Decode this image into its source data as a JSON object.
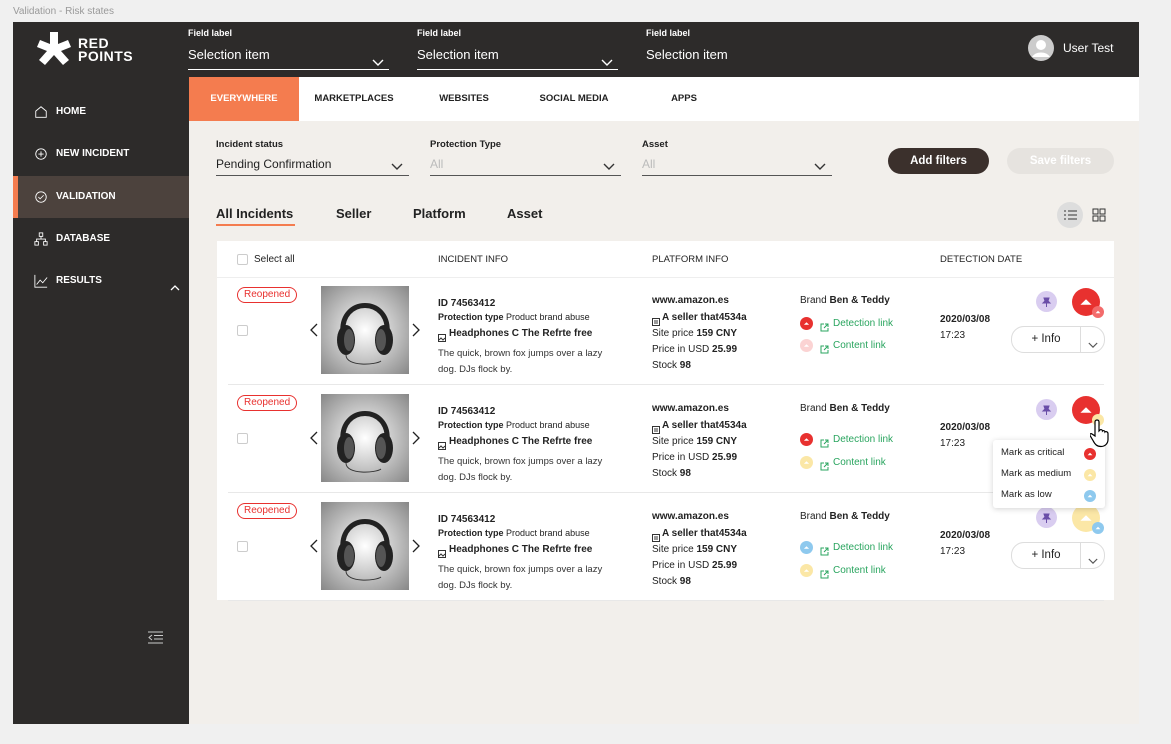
{
  "frame_label": "Validation - Risk states",
  "header": {
    "logo": [
      "RED",
      "POINTS"
    ],
    "fields": [
      {
        "label": "Field label",
        "value": "Selection item"
      },
      {
        "label": "Field label",
        "value": "Selection item"
      },
      {
        "label": "Field label",
        "value": "Selection item"
      }
    ],
    "user": "User Test"
  },
  "sidebar": {
    "items": [
      "HOME",
      "NEW INCIDENT",
      "VALIDATION",
      "DATABASE",
      "RESULTS"
    ],
    "active": 2
  },
  "channel_tabs": {
    "items": [
      "EVERYWHERE",
      "MARKETPLACES",
      "WEBSITES",
      "SOCIAL MEDIA",
      "APPS"
    ],
    "active": 0
  },
  "filters": [
    {
      "label": "Incident status",
      "value": "Pending Confirmation"
    },
    {
      "label": "Protection Type",
      "value": "All"
    },
    {
      "label": "Asset",
      "value": "All"
    }
  ],
  "buttons": {
    "add": "Add filters",
    "save": "Save filters"
  },
  "view_tabs": {
    "items": [
      "All Incidents",
      "Seller",
      "Platform",
      "Asset"
    ],
    "active": 0
  },
  "table": {
    "select_all": "Select all",
    "columns": [
      "INCIDENT INFO",
      "PLATFORM INFO",
      "DETECTION DATE"
    ],
    "rows": [
      {
        "status": "Reopened",
        "id": "ID 74563412",
        "protection_label": "Protection type",
        "protection": "Product brand abuse",
        "product": "Headphones C The Refrte free",
        "description": "The quick, brown fox jumps over a lazy dog. DJs flock by.",
        "platform": "www.amazon.es",
        "seller": "A seller that4534a",
        "site_price_label": "Site price",
        "site_price": "159 CNY",
        "usd_label": "Price in USD",
        "usd": "25.99",
        "stock_label": "Stock",
        "stock": "98",
        "brand_label": "Brand",
        "brand": "Ben & Teddy",
        "detection_link": "Detection link",
        "content_link": "Content link",
        "date": "2020/03/08",
        "time": "17:23",
        "info": "+ Info",
        "risk_color": "#e8312f",
        "risk_badge_color": "#f36b6b",
        "detection_color": "#e8312f",
        "content_color": "#fbd3d3"
      },
      {
        "status": "Reopened",
        "id": "ID 74563412",
        "protection_label": "Protection type",
        "protection": "Product brand abuse",
        "product": "Headphones C The Refrte free",
        "description": "The quick, brown fox jumps over a lazy dog. DJs flock by.",
        "platform": "www.amazon.es",
        "seller": "A seller that4534a",
        "site_price_label": "Site price",
        "site_price": "159 CNY",
        "usd_label": "Price in USD",
        "usd": "25.99",
        "stock_label": "Stock",
        "stock": "98",
        "brand_label": "Brand",
        "brand": "Ben & Teddy",
        "detection_link": "Detection link",
        "content_link": "Content link",
        "date": "2020/03/08",
        "time": "17:23",
        "risk_color": "#e8312f",
        "risk_badge_color": "#fbe7a6",
        "detection_color": "#e8312f",
        "content_color": "#fbe7a6"
      },
      {
        "status": "Reopened",
        "id": "ID 74563412",
        "protection_label": "Protection type",
        "protection": "Product brand abuse",
        "product": "Headphones C The Refrte free",
        "description": "The quick, brown fox jumps over a lazy dog. DJs flock by.",
        "platform": "www.amazon.es",
        "seller": "A seller that4534a",
        "site_price_label": "Site price",
        "site_price": "159 CNY",
        "usd_label": "Price in USD",
        "usd": "25.99",
        "stock_label": "Stock",
        "stock": "98",
        "brand_label": "Brand",
        "brand": "Ben & Teddy",
        "detection_link": "Detection link",
        "content_link": "Content link",
        "date": "2020/03/08",
        "time": "17:23",
        "info": "+ Info",
        "risk_color": "#fbe7a6",
        "risk_badge_color": "#8ec9ee",
        "detection_color": "#8ec9ee",
        "content_color": "#fbe7a6"
      }
    ]
  },
  "risk_menu": {
    "row": 1,
    "items": [
      {
        "label": "Mark as critical",
        "color": "#e8312f"
      },
      {
        "label": "Mark as medium",
        "color": "#fbe7a6"
      },
      {
        "label": "Mark as low",
        "color": "#8ec9ee"
      }
    ]
  }
}
